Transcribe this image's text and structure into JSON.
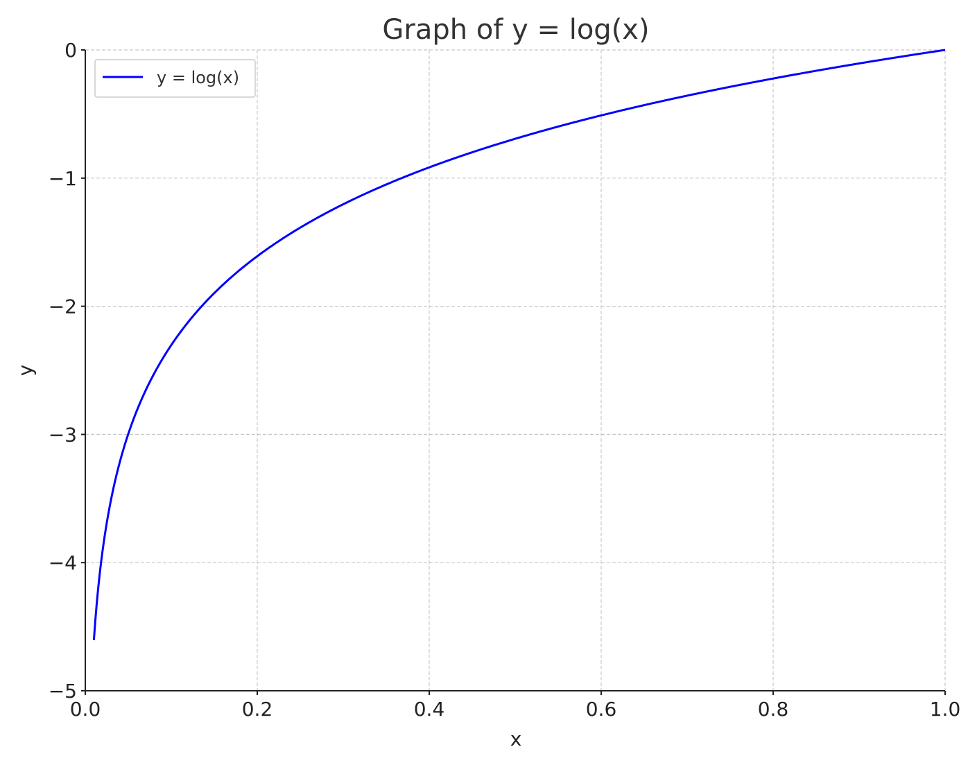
{
  "chart_data": {
    "type": "line",
    "title": "Graph of y = log(x)",
    "xlabel": "x",
    "ylabel": "y",
    "xlim": [
      0.0,
      1.0
    ],
    "ylim": [
      -5,
      0
    ],
    "x_ticks": [
      "0.0",
      "0.2",
      "0.4",
      "0.6",
      "0.8",
      "1.0"
    ],
    "y_ticks": [
      "0",
      "−1",
      "−2",
      "−3",
      "−4",
      "−5"
    ],
    "x_tick_values": [
      0.0,
      0.2,
      0.4,
      0.6,
      0.8,
      1.0
    ],
    "y_tick_values": [
      0,
      -1,
      -2,
      -3,
      -4,
      -5
    ],
    "grid": true,
    "legend_position": "top-left",
    "series": [
      {
        "name": "y = log(x)",
        "color": "#0000ff",
        "function": "natural-log",
        "x_range": [
          0.01,
          1.0
        ],
        "x": [
          0.01,
          0.02,
          0.05,
          0.1,
          0.2,
          0.3,
          0.4,
          0.5,
          0.6,
          0.7,
          0.8,
          0.9,
          1.0
        ],
        "values": [
          -4.61,
          -3.91,
          -3.0,
          -2.3,
          -1.61,
          -1.2,
          -0.92,
          -0.69,
          -0.51,
          -0.36,
          -0.22,
          -0.11,
          0.0
        ]
      }
    ]
  }
}
